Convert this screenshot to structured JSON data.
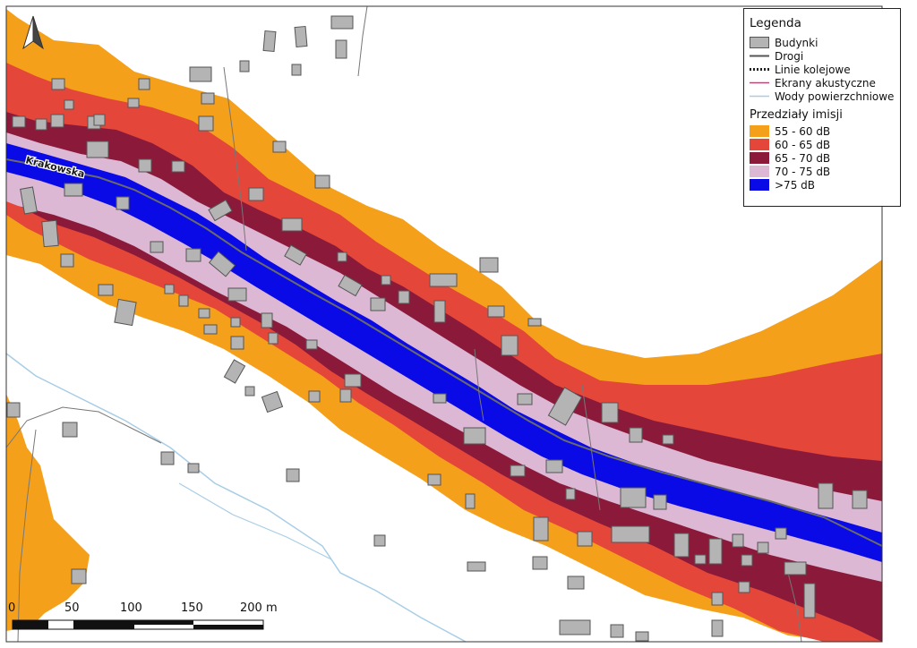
{
  "legend": {
    "title": "Legenda",
    "layers": [
      {
        "label": "Budynki",
        "icon": "building-swatch",
        "color": "#b4b4b4"
      },
      {
        "label": "Drogi",
        "icon": "road-line",
        "color": "#555555"
      },
      {
        "label": "Linie kolejowe",
        "icon": "railway-line",
        "color": "#222222"
      },
      {
        "label": "Ekrany akustyczne",
        "icon": "acoustic-screen-line",
        "color": "#b04a7a"
      },
      {
        "label": "Wody powierzchniowe",
        "icon": "water-line",
        "color": "#a8cde6"
      }
    ],
    "ranges_title": "Przedziały imisji",
    "ranges": [
      {
        "label": "55 - 60 dB",
        "color": "#f5a01b"
      },
      {
        "label": "60 - 65 dB",
        "color": "#e4473a"
      },
      {
        "label": "65 - 70 dB",
        "color": "#8b1a3a"
      },
      {
        "label": "70 - 75 dB",
        "color": "#dcb8d4"
      },
      {
        "label": ">75 dB",
        "color": "#0a0ae6"
      }
    ]
  },
  "road_label": "Krakowska",
  "scale_bar": {
    "ticks": [
      "0",
      "50",
      "100",
      "150",
      "200 m"
    ]
  },
  "north_arrow": {
    "icon": "north-arrow-icon"
  }
}
